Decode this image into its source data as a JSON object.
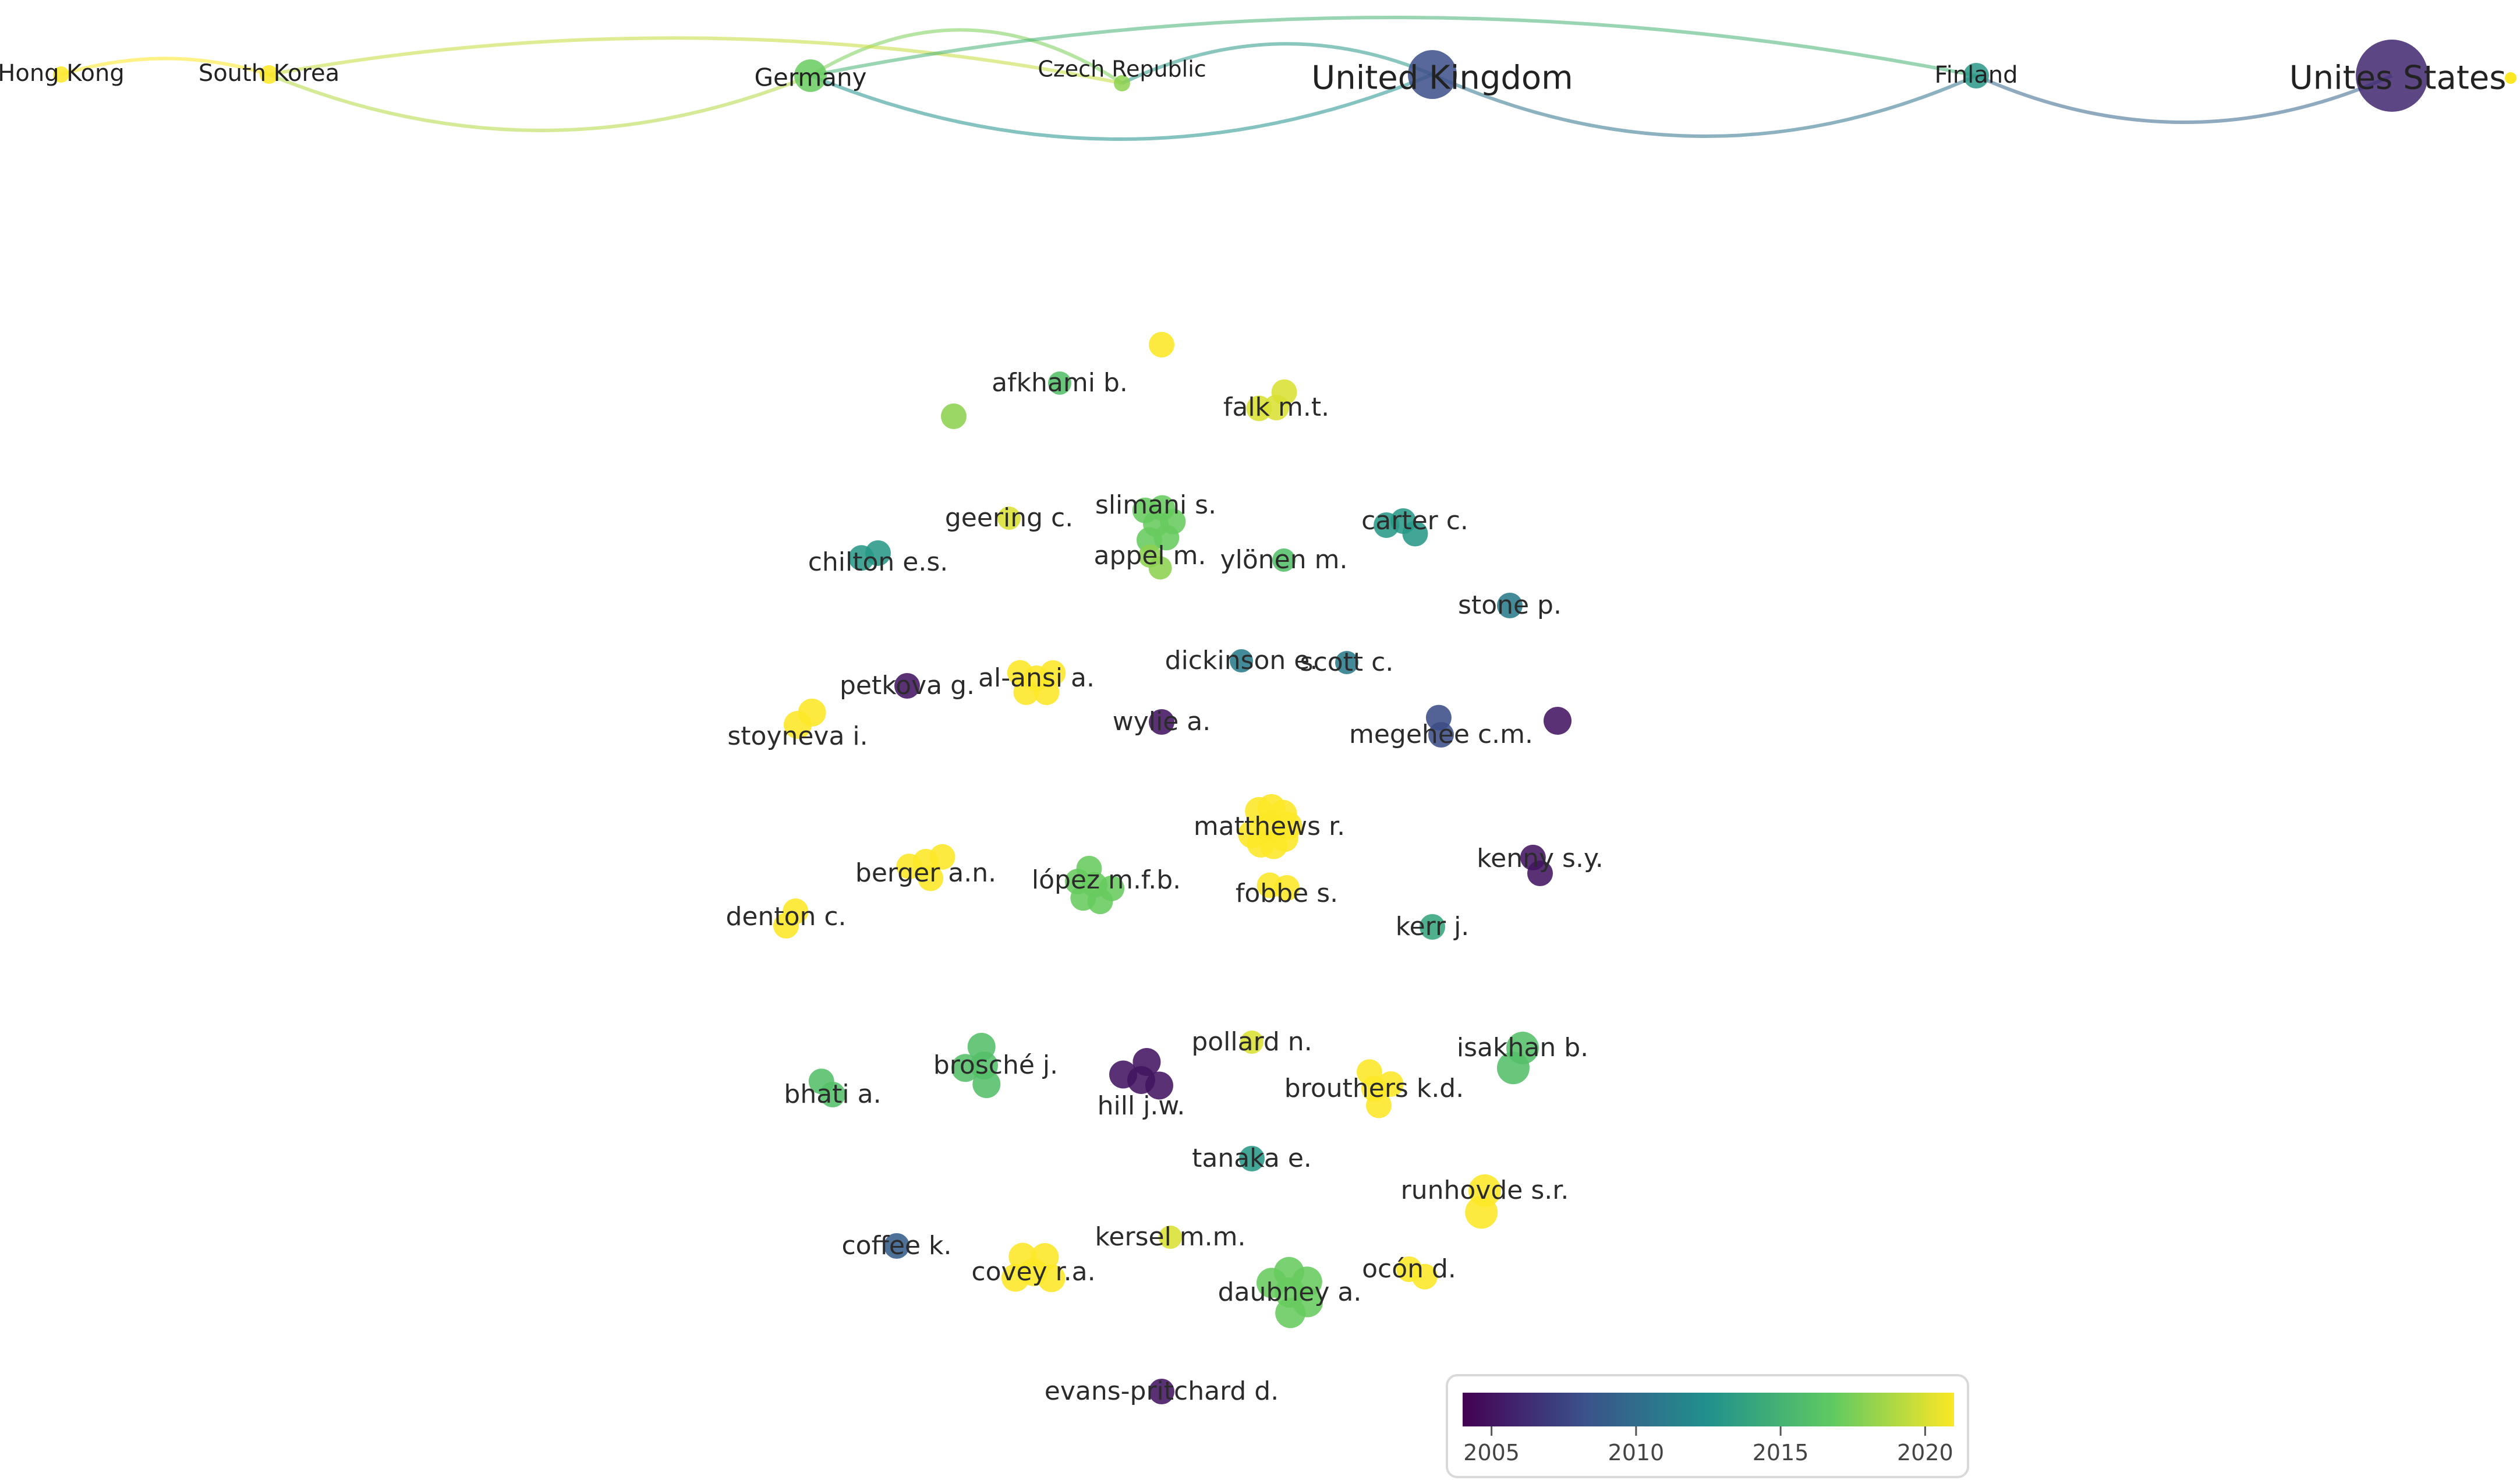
{
  "colors": {
    "scale": [
      "#440154",
      "#3b528b",
      "#21918c",
      "#5ec962",
      "#fde725"
    ],
    "label": "#222222"
  },
  "countries": [
    {
      "label": "Hong Kong",
      "year": 2021,
      "weight": 1
    },
    {
      "label": "South Korea",
      "year": 2021,
      "weight": 1
    },
    {
      "label": "Germany",
      "year": 2017,
      "weight": 2
    },
    {
      "label": "Czech Republic",
      "year": 2018,
      "weight": 1
    },
    {
      "label": "United Kingdom",
      "year": 2008,
      "weight": 4
    },
    {
      "label": "Finland",
      "year": 2013,
      "weight": 1
    },
    {
      "label": "Unites States",
      "year": 2006,
      "weight": 5
    }
  ],
  "country_links": [
    [
      "Hong Kong",
      "South Korea"
    ],
    [
      "South Korea",
      "Germany"
    ],
    [
      "Germany",
      "Czech Republic"
    ],
    [
      "Germany",
      "United Kingdom"
    ],
    [
      "Czech Republic",
      "United Kingdom"
    ],
    [
      "South Korea",
      "Czech Republic"
    ],
    [
      "United Kingdom",
      "Finland"
    ],
    [
      "Finland",
      "Unites States"
    ],
    [
      "Germany",
      "Finland"
    ]
  ],
  "authors": [
    {
      "label": "afkhami b.",
      "year": 2016
    },
    {
      "label": "falk m.t.",
      "year": 2020
    },
    {
      "label": "geering c.",
      "year": 2020
    },
    {
      "label": "slimani s.",
      "year": 2017
    },
    {
      "label": "appel m.",
      "year": 2018
    },
    {
      "label": "carter c.",
      "year": 2013
    },
    {
      "label": "chilton e.s.",
      "year": 2013
    },
    {
      "label": "ylönen m.",
      "year": 2016
    },
    {
      "label": "stone p.",
      "year": 2011
    },
    {
      "label": "dickinson e.",
      "year": 2011
    },
    {
      "label": "scott c.",
      "year": 2011
    },
    {
      "label": "al-ansi a.",
      "year": 2021
    },
    {
      "label": "petkova g.",
      "year": 2005
    },
    {
      "label": "wylie a.",
      "year": 2005
    },
    {
      "label": "megehee c.m.",
      "year": 2008
    },
    {
      "label": "stoyneva i.",
      "year": 2021
    },
    {
      "label": "matthews r.",
      "year": 2021
    },
    {
      "label": "berger a.n.",
      "year": 2021
    },
    {
      "label": "lópez m.f.b.",
      "year": 2017
    },
    {
      "label": "fobbe s.",
      "year": 2021
    },
    {
      "label": "kenny s.y.",
      "year": 2005
    },
    {
      "label": "denton c.",
      "year": 2021
    },
    {
      "label": "kerr j.",
      "year": 2014
    },
    {
      "label": "pollard n.",
      "year": 2020
    },
    {
      "label": "isakhan b.",
      "year": 2016
    },
    {
      "label": "brosché j.",
      "year": 2016
    },
    {
      "label": "bhati a.",
      "year": 2016
    },
    {
      "label": "hill j.w.",
      "year": 2005
    },
    {
      "label": "brouthers k.d.",
      "year": 2021
    },
    {
      "label": "tanaka e.",
      "year": 2013
    },
    {
      "label": "runhovde s.r.",
      "year": 2021
    },
    {
      "label": "kersel m.m.",
      "year": 2020
    },
    {
      "label": "coffee k.",
      "year": 2009
    },
    {
      "label": "covey r.a.",
      "year": 2021
    },
    {
      "label": "daubney a.",
      "year": 2017
    },
    {
      "label": "ocón d.",
      "year": 2021
    },
    {
      "label": "evans-pritchard d.",
      "year": 2005
    }
  ],
  "unlabeled_nodes": [
    {
      "name": "node-yellow-top",
      "year": 2021
    },
    {
      "name": "node-lime-left",
      "year": 2018
    },
    {
      "name": "node-purple-right",
      "year": 2005
    }
  ],
  "legend": {
    "ticks": [
      "2005",
      "2010",
      "2015",
      "2020"
    ],
    "min": 2004,
    "max": 2021
  }
}
